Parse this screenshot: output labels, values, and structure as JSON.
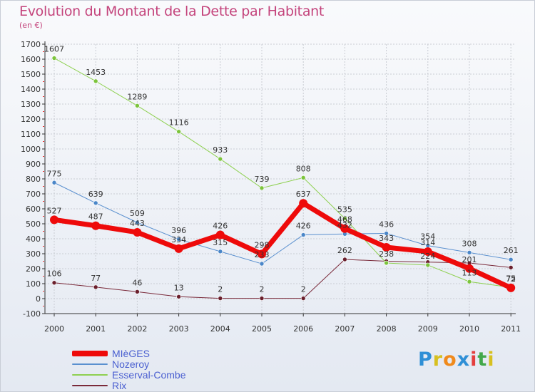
{
  "header": {
    "title": "Evolution du Montant de la Dette par Habitant",
    "subtitle": "(en €)"
  },
  "brand": {
    "text": "Proxiti",
    "letter_colors": [
      "#2f8fd6",
      "#d7c020",
      "#f08a1c",
      "#2f8fd6",
      "#e43e3e",
      "#42a84a",
      "#d7c020"
    ]
  },
  "chart_data": {
    "type": "line",
    "x": [
      "2000",
      "2001",
      "2002",
      "2003",
      "2004",
      "2005",
      "2006",
      "2007",
      "2008",
      "2009",
      "2010",
      "2011"
    ],
    "ylim": [
      -100,
      1700
    ],
    "yticks": [
      "-100",
      "0",
      "100",
      "200",
      "300",
      "400",
      "500",
      "600",
      "700",
      "800",
      "900",
      "1000",
      "1100",
      "1200",
      "1300",
      "1400",
      "1500",
      "1600",
      "1700"
    ],
    "grid": true,
    "legend_position": "bottom-left",
    "series": [
      {
        "name": "Rix",
        "color": "#7a2a3a",
        "marker": "#6a1f2c",
        "width": 1,
        "values": [
          106,
          77,
          46,
          13,
          2,
          2,
          2,
          262,
          250,
          244,
          238,
          208
        ],
        "labels": [
          "106",
          "77",
          "46",
          "13",
          "2",
          "2",
          "2",
          "262",
          "",
          "",
          "",
          ""
        ]
      },
      {
        "name": "Esserval-Combe",
        "color": "#8ed050",
        "marker": "#7cc43c",
        "width": 1,
        "values": [
          1607,
          1453,
          1289,
          1116,
          933,
          739,
          808,
          535,
          238,
          224,
          113,
          75
        ],
        "labels": [
          "1607",
          "1453",
          "1289",
          "1116",
          "933",
          "739",
          "808",
          "535",
          "238",
          "224",
          "113",
          "75"
        ]
      },
      {
        "name": "Nozeroy",
        "color": "#5a90cf",
        "marker": "#4a86c8",
        "width": 1,
        "values": [
          775,
          639,
          509,
          396,
          315,
          233,
          426,
          432,
          436,
          354,
          308,
          261
        ],
        "labels": [
          "775",
          "639",
          "509",
          "396",
          "315",
          "233",
          "426",
          "432",
          "436",
          "354",
          "308",
          "261"
        ]
      },
      {
        "name": "MIèGES",
        "color": "#ee0a0a",
        "marker": "#ee0a0a",
        "width": 7,
        "values": [
          527,
          487,
          443,
          334,
          426,
          298,
          637,
          468,
          343,
          314,
          201,
          72
        ],
        "labels": [
          "527",
          "487",
          "443",
          "334",
          "426",
          "298",
          "637",
          "468",
          "343",
          "314",
          "201",
          "72"
        ]
      }
    ],
    "legend_order": [
      "MIèGES",
      "Nozeroy",
      "Esserval-Combe",
      "Rix"
    ]
  }
}
